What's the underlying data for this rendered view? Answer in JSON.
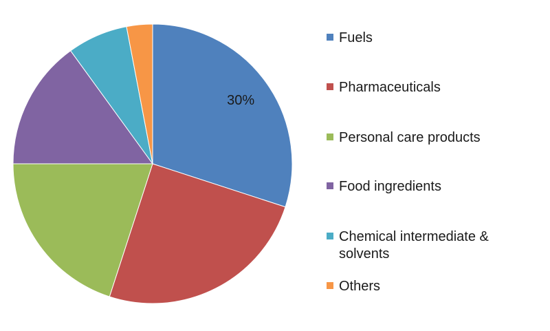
{
  "chart_data": {
    "type": "pie",
    "categories": [
      "Fuels",
      "Pharmaceuticals",
      "Personal care products",
      "Food ingredients",
      "Chemical intermediate & solvents",
      "Others"
    ],
    "values": [
      30,
      25,
      20,
      15,
      7,
      3
    ],
    "colors": [
      "#4f81bd",
      "#c0504d",
      "#9bbb59",
      "#8064a2",
      "#4bacc6",
      "#f79646"
    ],
    "data_labels": [
      "30%",
      "",
      "",
      "",
      "",
      ""
    ],
    "legend": "right",
    "title": ""
  }
}
